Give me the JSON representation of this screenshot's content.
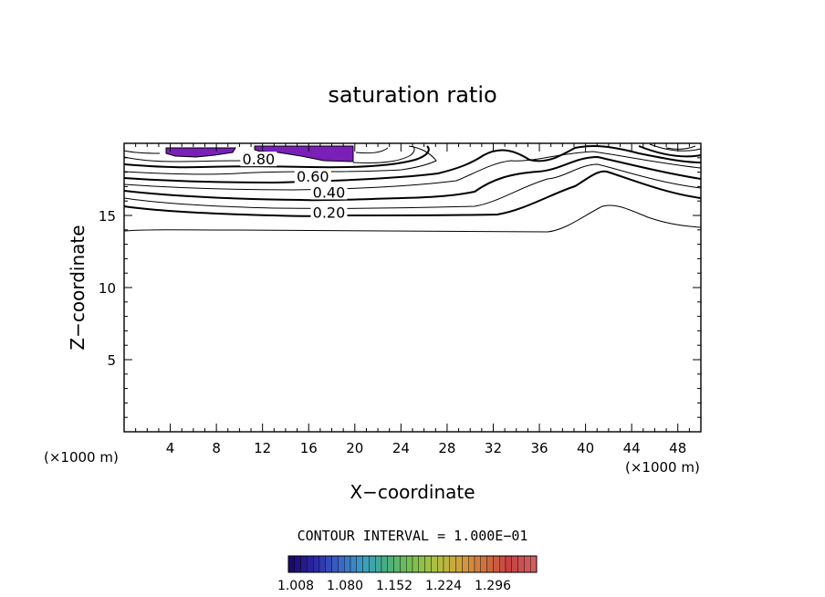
{
  "chart_data": {
    "type": "contour",
    "title": "saturation ratio",
    "xlabel": "X−coordinate",
    "ylabel": "Z−coordinate",
    "x_unit_left": "(×1000 m)",
    "x_unit_right": "(×1000 m)",
    "xlim": [
      0,
      50
    ],
    "ylim": [
      0,
      20
    ],
    "x_ticks": [
      4,
      8,
      12,
      16,
      20,
      24,
      28,
      32,
      36,
      40,
      44,
      48
    ],
    "y_ticks": [
      5,
      10,
      15
    ],
    "contour_labels": [
      {
        "text": "0.80",
        "x": 11.5,
        "y": 18.6
      },
      {
        "text": "0.60",
        "x": 16.2,
        "y": 17.4
      },
      {
        "text": "0.40",
        "x": 17.6,
        "y": 16.3
      },
      {
        "text": "0.20",
        "x": 17.6,
        "y": 14.9
      }
    ],
    "contour_interval_text": "CONTOUR INTERVAL = 1.000E−01",
    "colorbar": {
      "tick_labels": [
        "1.008",
        "1.080",
        "1.152",
        "1.224",
        "1.296"
      ],
      "colors": [
        "#1b0a6e",
        "#2a2aa8",
        "#3c66c8",
        "#3aa0c0",
        "#4ab07a",
        "#7cc050",
        "#b0c040",
        "#d0a040",
        "#d07040",
        "#c84040",
        "#d06060"
      ]
    },
    "supersaturated_fill_color": "#7a1fb8",
    "grid": false
  }
}
